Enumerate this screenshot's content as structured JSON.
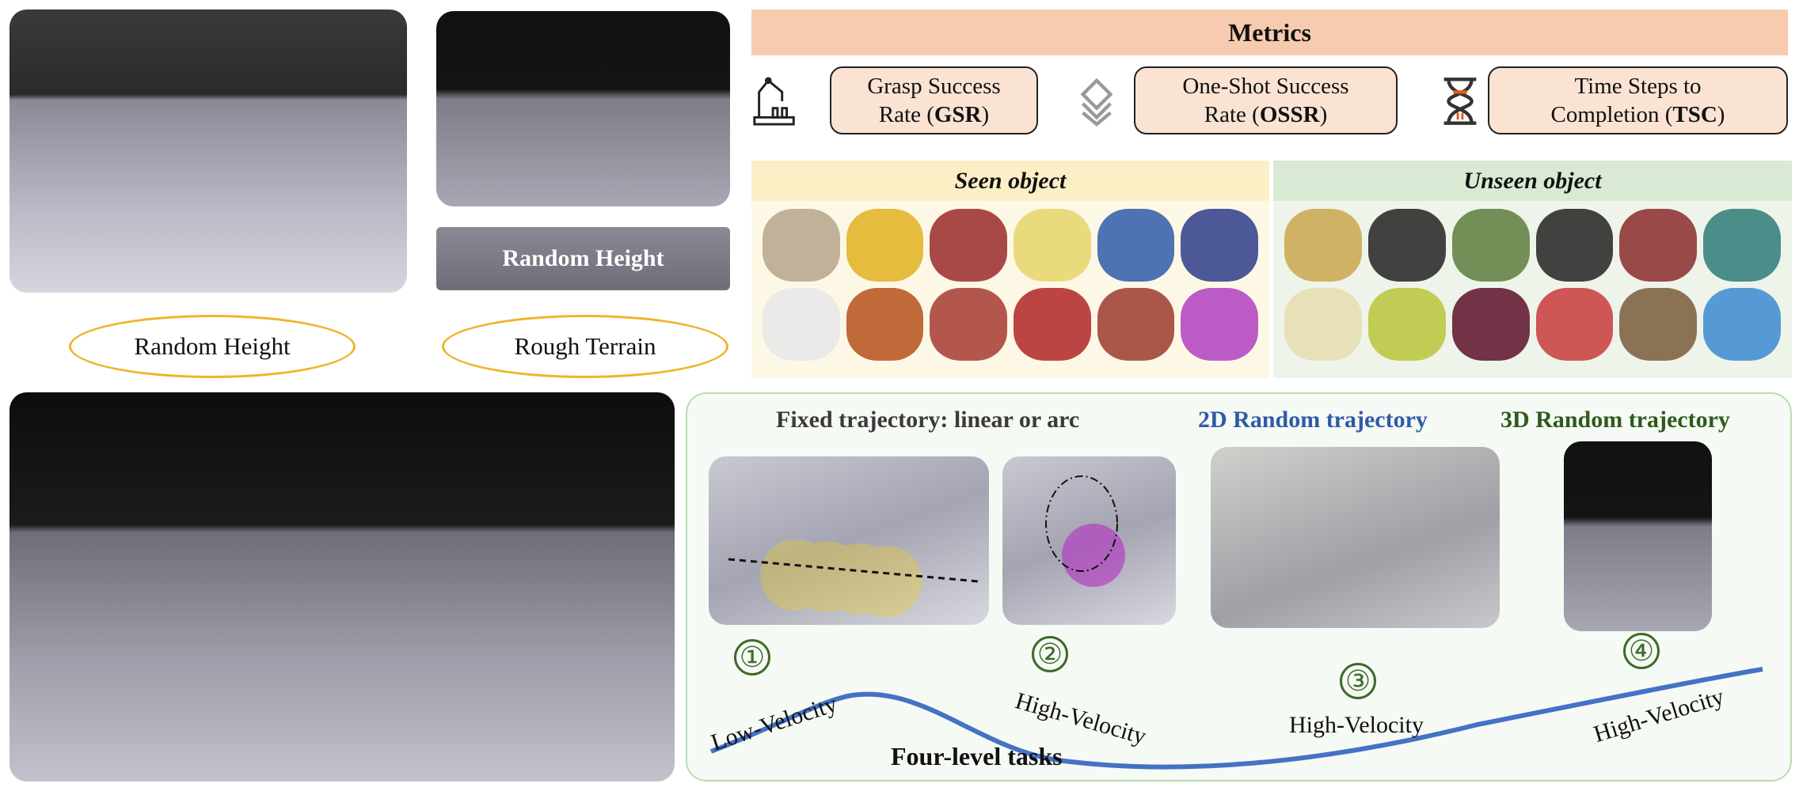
{
  "top_left": {
    "label": "Random Height"
  },
  "top_middle": {
    "inset_label": "Random Height",
    "label": "Rough Terrain"
  },
  "metrics": {
    "title": "Metrics",
    "items": [
      {
        "icon": "robot-arm-icon",
        "line1": "Grasp Success",
        "line2_pre": "Rate (",
        "abbr": "GSR",
        "line2_post": ")"
      },
      {
        "icon": "layers-icon",
        "line1": "One-Shot Success",
        "line2_pre": "Rate (",
        "abbr": "OSSR",
        "line2_post": ")"
      },
      {
        "icon": "hourglass-icon",
        "line1": "Time Steps to",
        "line2_pre": "Completion (",
        "abbr": "TSC",
        "line2_post": ")"
      }
    ]
  },
  "objects": {
    "seen_title": "Seen object",
    "unseen_title": "Unseen object",
    "seen_colors": [
      "#b5a48a",
      "#e0b21e",
      "#9a2a2a",
      "#e5d56a",
      "#2f5aa8",
      "#2d3c8a",
      "#e8e8e8",
      "#b5501a",
      "#a63b30",
      "#b02626",
      "#9b3b2e",
      "#b13fc0"
    ],
    "unseen_colors": [
      "#c9a64e",
      "#222222",
      "#5d7d3e",
      "#222222",
      "#8a2a2a",
      "#2e7a78",
      "#e6dcb0",
      "#b8c43a",
      "#5a1028",
      "#c83a3a",
      "#7a5a3a",
      "#3a8ad0"
    ]
  },
  "tasks": {
    "fixed_title": "Fixed trajectory: linear or arc",
    "random2d_title": "2D Random trajectory",
    "random3d_title": "3D Random trajectory",
    "colors": {
      "fixed": "#3a3a3a",
      "random2d": "#2f5aa8",
      "random3d": "#2e5a1e",
      "curve": "#4472c4"
    },
    "levels": [
      {
        "num": "①",
        "label": "Low-Velocity"
      },
      {
        "num": "②",
        "label": "High-Velocity"
      },
      {
        "num": "③",
        "label": "High-Velocity"
      },
      {
        "num": "④",
        "label": "High-Velocity"
      }
    ],
    "footer": "Four-level tasks"
  }
}
